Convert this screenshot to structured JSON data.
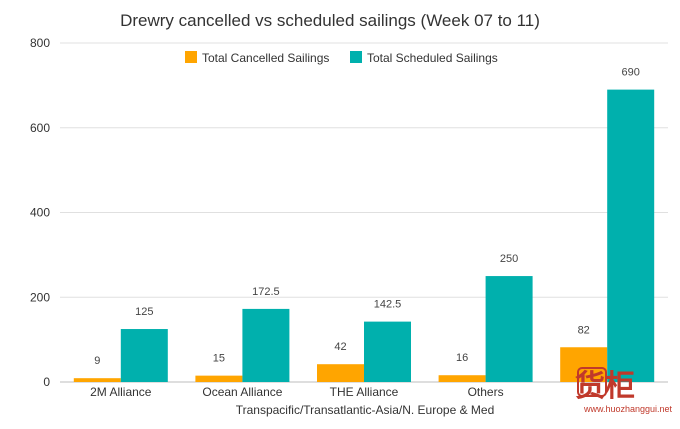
{
  "chart_data": {
    "type": "bar",
    "title": "Drewry cancelled vs scheduled sailings (Week 07 to 11)",
    "xlabel": "Transpacific/Transatlantic-Asia/N. Europe & Med",
    "ylabel": "",
    "categories": [
      "2M Alliance",
      "Ocean Alliance",
      "THE Alliance",
      "Others",
      ""
    ],
    "series": [
      {
        "name": "Total Cancelled Sailings",
        "color": "#ffa500",
        "values": [
          9,
          15,
          42,
          16,
          82
        ],
        "labels": [
          "9",
          "15",
          "42",
          "16",
          "82"
        ]
      },
      {
        "name": "Total Scheduled Sailings",
        "color": "#00b0ad",
        "values": [
          125,
          172.5,
          142.5,
          250,
          690
        ],
        "labels": [
          "125",
          "172.5",
          "142.5",
          "250",
          "690"
        ]
      }
    ],
    "ylim": [
      0,
      800
    ],
    "yticks": [
      0,
      200,
      400,
      600,
      800
    ],
    "grid": true,
    "legend_position": "top-center"
  },
  "watermark": {
    "logo_text": "货柜",
    "site_text": "www.huozhanggui.net",
    "color": "#c0392b"
  }
}
